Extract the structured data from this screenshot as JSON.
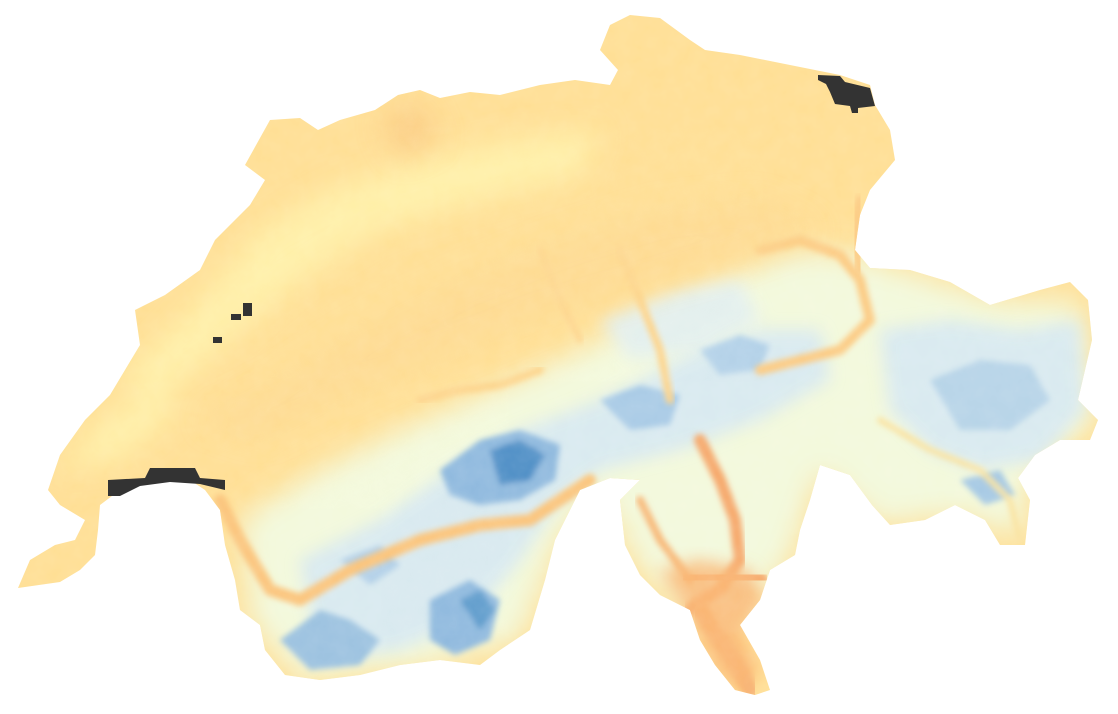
{
  "map": {
    "type": "raster-heatmap",
    "region_shape": "switzerland-outline",
    "background": "#ffffff",
    "palette": {
      "lowland_warm": "#ffdf94",
      "lowland_warm_alt": "#fddc8f",
      "valley_orange": "#f9b46e",
      "hills_yellow": "#fff0a8",
      "transition_pale": "#eef7e0",
      "alpine_light_blue": "#cfe4f2",
      "alpine_blue": "#8fb9de",
      "alpine_deep_blue": "#4f8fc6",
      "nodata_lake": "#333333"
    },
    "lakes_nodata": [
      "lake-geneva",
      "lake-constance",
      "small-jura-lakes"
    ],
    "legend": null,
    "title": ""
  }
}
